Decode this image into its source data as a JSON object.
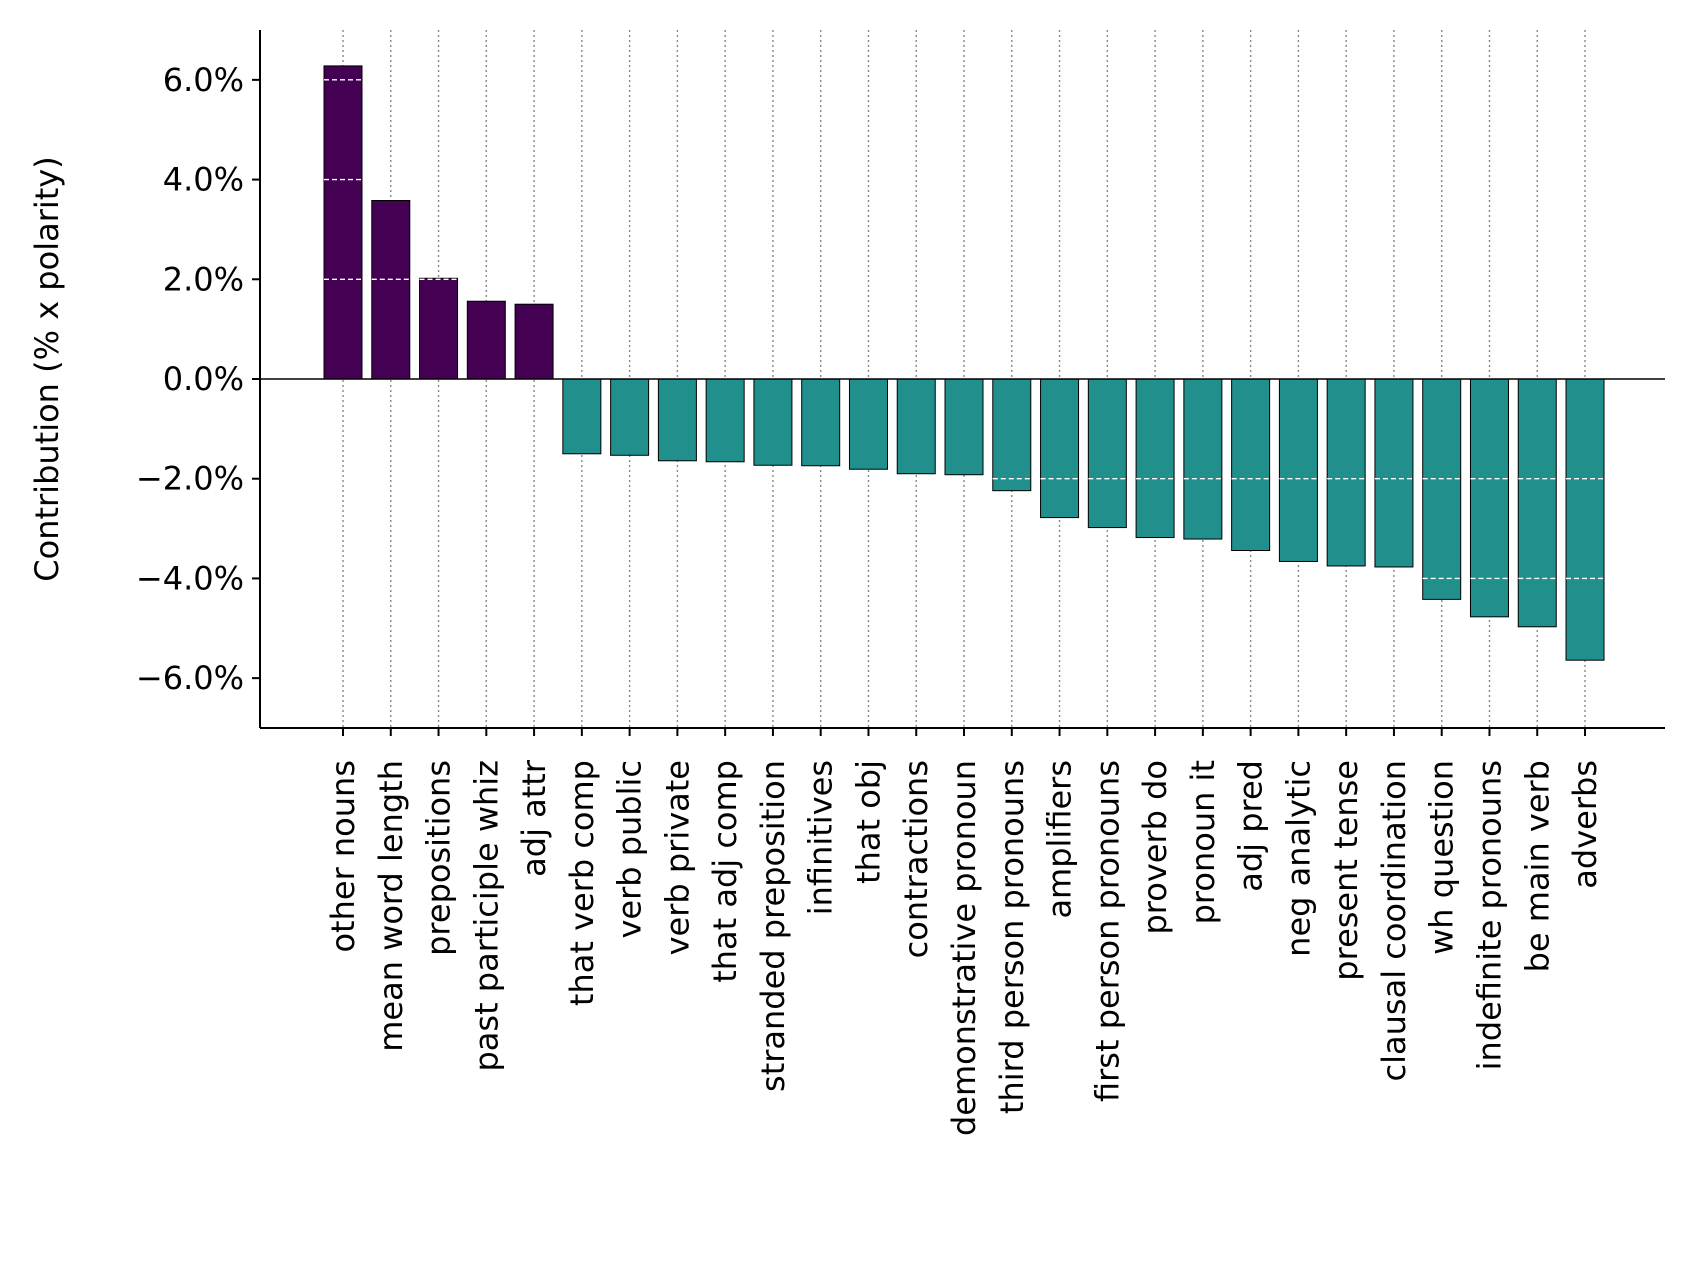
{
  "chart_data": {
    "type": "bar",
    "title": "",
    "xlabel": "",
    "ylabel": "Contribution (% x polarity)",
    "ylim": [
      -7.0,
      7.0
    ],
    "y_ticks": [
      -6.0,
      -4.0,
      -2.0,
      0.0,
      2.0,
      4.0,
      6.0
    ],
    "y_tick_labels": [
      "−6.0%",
      "−4.0%",
      "−2.0%",
      "0.0%",
      "2.0%",
      "4.0%",
      "6.0%"
    ],
    "grid": {
      "vertical": "dotted",
      "horizontal_inside_bars": "dashed white"
    },
    "legend": "none",
    "colors": {
      "positive": "#440154",
      "negative": "#21908d",
      "edge": "#000000"
    },
    "categories": [
      "other nouns",
      "mean word length",
      "prepositions",
      "past participle whiz",
      "adj attr",
      "that verb comp",
      "verb public",
      "verb private",
      "that adj comp",
      "stranded preposition",
      "infinitives",
      "that obj",
      "contractions",
      "demonstrative pronoun",
      "third person pronouns",
      "amplifiers",
      "first person pronouns",
      "proverb do",
      "pronoun it",
      "adj pred",
      "neg analytic",
      "present tense",
      "clausal coordination",
      "wh question",
      "indefinite pronouns",
      "be main verb",
      "adverbs"
    ],
    "values": [
      6.28,
      3.58,
      2.02,
      1.56,
      1.5,
      -1.5,
      -1.53,
      -1.64,
      -1.66,
      -1.73,
      -1.74,
      -1.81,
      -1.9,
      -1.92,
      -2.24,
      -2.78,
      -2.98,
      -3.18,
      -3.21,
      -3.44,
      -3.66,
      -3.75,
      -3.77,
      -4.42,
      -4.77,
      -4.97,
      -5.64
    ]
  }
}
